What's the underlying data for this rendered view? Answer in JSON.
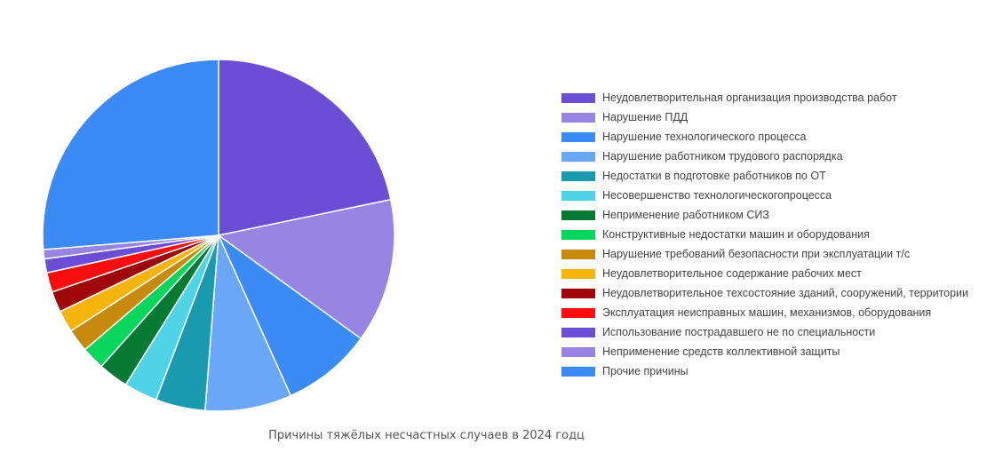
{
  "chart_data": {
    "type": "pie",
    "title": "Причины тяжёлых несчастных случаев в 2024 годц",
    "legend_position": "right",
    "slices": [
      {
        "label": "Неудовлетворительная организация производства работ",
        "value": 20.5,
        "color": "#6A4FD6"
      },
      {
        "label": "Нарушение ПДД",
        "value": 12.5,
        "color": "#9785E3"
      },
      {
        "label": "Нарушение технологического процесса",
        "value": 7.8,
        "color": "#3B8BF7"
      },
      {
        "label": "Нарушение работником трудового распорядка",
        "value": 7.5,
        "color": "#6AA7F8"
      },
      {
        "label": "Недостатки в подготовке работников по ОТ",
        "value": 4.3,
        "color": "#1A9AAE"
      },
      {
        "label": "Несовершенство технологическогопроцесса",
        "value": 2.9,
        "color": "#4FD3E6"
      },
      {
        "label": "Неприменение работником СИЗ",
        "value": 2.6,
        "color": "#047A33"
      },
      {
        "label": "Конструктивные недостатки машин и оборудования",
        "value": 2.0,
        "color": "#07D65C"
      },
      {
        "label": "Нарушение требований безопасности при эксплуатации т/с",
        "value": 2.0,
        "color": "#C88A0A"
      },
      {
        "label": "Неудовлетворительное содержание рабочих мест",
        "value": 1.9,
        "color": "#F7B40A"
      },
      {
        "label": "Неудовлетворительное техсостояние зданий, сооружений, территории",
        "value": 1.8,
        "color": "#9E0608"
      },
      {
        "label": "Эксплуатация неисправных машин, механизмов, оборудования",
        "value": 1.7,
        "color": "#FC0D0D"
      },
      {
        "label": "Использование пострадавшего не по специальности",
        "value": 1.2,
        "color": "#6A4FD6"
      },
      {
        "label": "Неприменение средств коллективной защиты",
        "value": 0.8,
        "color": "#9785E3"
      },
      {
        "label": "Прочие причины",
        "value": 24.8,
        "color": "#3B8BF7"
      }
    ]
  }
}
